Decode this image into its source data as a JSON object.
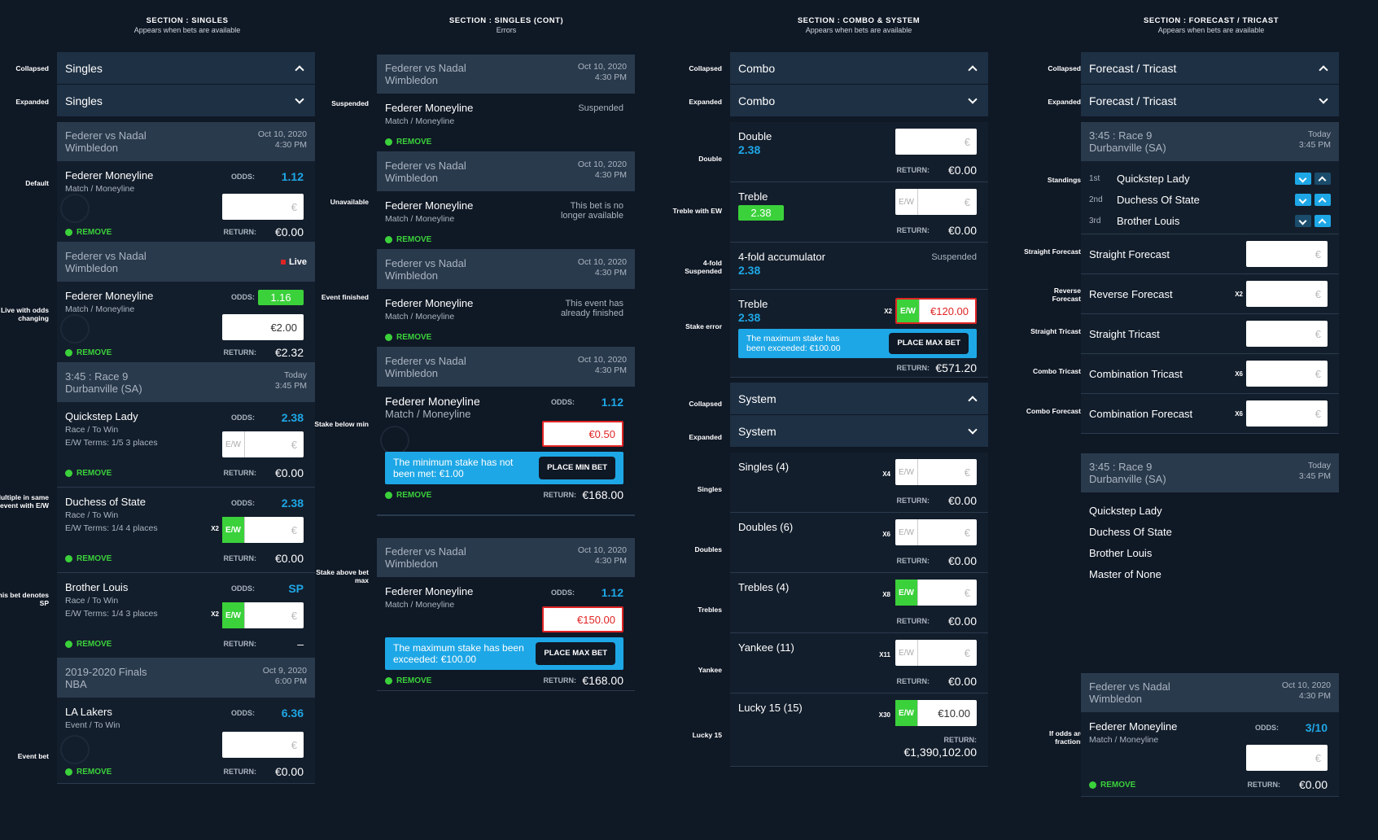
{
  "sections": [
    {
      "title": "SECTION : SINGLES",
      "sub": "Appears when bets are available"
    },
    {
      "title": "SECTION : SINGLES (CONT)",
      "sub": "Errors"
    },
    {
      "title": "SECTION : COMBO & SYSTEM",
      "sub": "Appears when bets are available"
    },
    {
      "title": "SECTION : FORECAST / TRICAST",
      "sub": "Appears when bets are available"
    }
  ],
  "labels": {
    "collapsed": "Collapsed",
    "expanded": "Expanded",
    "default": "Default",
    "live": "Live with odds changing",
    "multiple": "Multiple in same event with E/W",
    "sp": "This bet denotes SP",
    "event_bet": "Event bet",
    "suspended": "Suspended",
    "unavailable": "Unavailable",
    "finished": "Event finished",
    "below_min": "Stake below min",
    "above_max": "Stake above bet max",
    "double": "Double",
    "treble_ew": "Treble with EW",
    "fourfold_susp": "4-fold Suspended",
    "stake_error": "Stake error",
    "singles": "Singles",
    "doubles": "Doubles",
    "trebles": "Trebles",
    "yankee": "Yankee",
    "lucky15": "Lucky 15",
    "standings": "Standings",
    "straight_forecast": "Straight Forecast",
    "reverse_forecast": "Reverse Forecast",
    "straight_tricast": "Straight Tricast",
    "combo_tricast": "Combo Tricast",
    "combo_forecast": "Combo Forecast",
    "fractions": "If odds are fractions"
  },
  "common": {
    "odds": "ODDS:",
    "return": "RETURN:",
    "remove": "REMOVE",
    "euro": "€",
    "ew": "E/W",
    "zero": "€0.00",
    "x2": "X2"
  },
  "singles": {
    "title": "Singles"
  },
  "ev_fn": {
    "name": "Federer vs Nadal",
    "sub": "Wimbledon",
    "date": "Oct 10, 2020",
    "time": "4:30 PM",
    "live": "Live"
  },
  "bet_fm": {
    "name": "Federer Moneyline",
    "market": "Match / Moneyline",
    "odds": "1.12",
    "odds_live": "1.16",
    "stake": "€2.00",
    "ret": "€2.32",
    "ret_err": "€168.00"
  },
  "race": {
    "name": "3:45 : Race 9",
    "sub": "Durbanville (SA)",
    "date": "Today",
    "time": "3:45 PM"
  },
  "horses": [
    {
      "name": "Quickstep Lady",
      "market": "Race / To Win",
      "terms": "E/W Terms: 1/5 3 places",
      "odds": "2.38"
    },
    {
      "name": "Duchess of State",
      "market": "Race / To Win",
      "terms": "E/W Terms: 1/4 4 places",
      "odds": "2.38"
    },
    {
      "name": "Brother Louis",
      "market": "Race / To Win",
      "terms": "E/W Terms: 1/4 3 places",
      "odds": "SP",
      "ret": "–"
    }
  ],
  "nba": {
    "name": "2019-2020 Finals",
    "sub": "NBA",
    "date": "Oct 9, 2020",
    "time": "6:00 PM",
    "bet": "LA Lakers",
    "market": "Event / To Win",
    "odds": "6.36"
  },
  "errors": {
    "suspended": "Suspended",
    "unavailable": "This bet is no longer available",
    "finished": "This event has already finished",
    "min_stake": "€0.50",
    "min_msg": "The minimum stake has not been met: €1.00",
    "min_btn": "PLACE MIN BET",
    "max_stake": "€150.00",
    "max_msg": "The maximum stake has been exceeded: €100.00",
    "max_btn": "PLACE MAX BET"
  },
  "combo": {
    "title": "Combo",
    "double": {
      "name": "Double",
      "odds": "2.38"
    },
    "treble": {
      "name": "Treble",
      "odds": "2.38"
    },
    "fourfold": {
      "name": "4-fold accumulator",
      "odds": "2.38",
      "status": "Suspended"
    },
    "treble_err": {
      "name": "Treble",
      "odds": "2.38",
      "stake": "€120.00",
      "msg": "The maximum stake has been exceeded: €100.00",
      "btn": "PLACE MAX BET",
      "ret": "€571.20"
    }
  },
  "system": {
    "title": "System",
    "items": [
      {
        "name": "Singles (4)",
        "mult": "X4",
        "ret": "€0.00"
      },
      {
        "name": "Doubles (6)",
        "mult": "X6",
        "ret": "€0.00"
      },
      {
        "name": "Trebles (4)",
        "mult": "X8",
        "ret": "€0.00"
      },
      {
        "name": "Yankee (11)",
        "mult": "X11",
        "ret": "€0.00"
      },
      {
        "name": "Lucky 15 (15)",
        "mult": "X30",
        "stake": "€10.00",
        "ret": "€1,390,102.00"
      }
    ]
  },
  "forecast": {
    "title": "Forecast / Tricast",
    "standings": [
      {
        "pos": "1st",
        "name": "Quickstep Lady"
      },
      {
        "pos": "2nd",
        "name": "Duchess Of State"
      },
      {
        "pos": "3rd",
        "name": "Brother Louis"
      }
    ],
    "types": [
      {
        "name": "Straight Forecast",
        "mult": ""
      },
      {
        "name": "Reverse Forecast",
        "mult": "X2"
      },
      {
        "name": "Straight Tricast",
        "mult": ""
      },
      {
        "name": "Combination Tricast",
        "mult": "X6"
      },
      {
        "name": "Combination Forecast",
        "mult": "X6"
      }
    ],
    "runners": [
      "Quickstep Lady",
      "Duchess Of State",
      "Brother Louis",
      "Master of None"
    ],
    "frac_odds": "3/10"
  }
}
